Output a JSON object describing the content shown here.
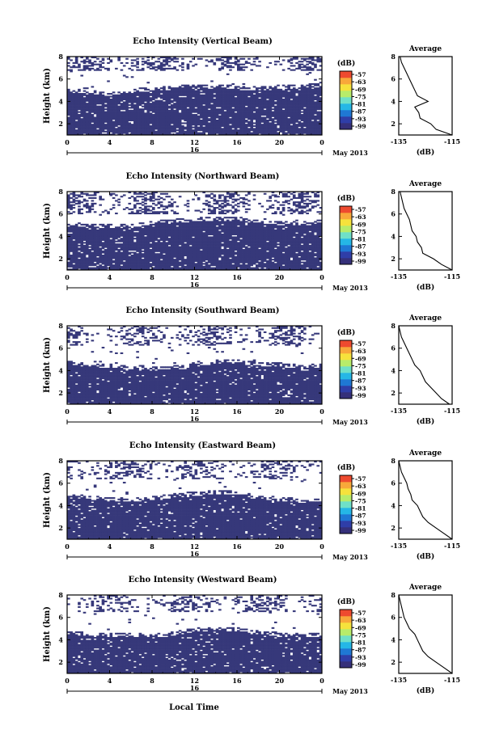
{
  "figure": {
    "common": {
      "ylabel": "Height (km)",
      "y_ticks": [
        "2",
        "4",
        "6",
        "8"
      ],
      "x_ticks": [
        "0",
        "4",
        "8",
        "12",
        "16",
        "20",
        "0"
      ],
      "day_label": "16",
      "month_label": "May 2013",
      "xlabel": "Local Time",
      "colorbar_unit": "(dB)",
      "colorbar_ticks": [
        "-57",
        "-63",
        "-69",
        "-75",
        "-81",
        "-87",
        "-93",
        "-99"
      ],
      "avg_title": "Average",
      "avg_xlabel": "(dB)",
      "avg_x_ticks": [
        "-135",
        "-115"
      ],
      "avg_y_ticks": [
        "2",
        "4",
        "6",
        "8"
      ]
    },
    "colors": {
      "echo": "#36387a",
      "colorbar": [
        "#35307a",
        "#2f3ea8",
        "#1f78d4",
        "#25b7e6",
        "#6fe0c8",
        "#b8ec6a",
        "#f6e23c",
        "#f8a83a",
        "#ee4a2f"
      ]
    }
  },
  "chart_data": [
    {
      "type": "heatmap",
      "title": "Echo Intensity (Vertical Beam)",
      "xlim": [
        0,
        24
      ],
      "ylim": [
        1,
        8
      ],
      "solid_layer": [
        [
          0,
          4.8
        ],
        [
          2,
          4.65
        ],
        [
          4,
          4.5
        ],
        [
          6,
          4.8
        ],
        [
          8,
          4.95
        ],
        [
          10,
          5.05
        ],
        [
          12,
          5.15
        ],
        [
          14,
          5.2
        ],
        [
          16,
          5.05
        ],
        [
          18,
          5.0
        ],
        [
          20,
          5.1
        ],
        [
          22,
          5.2
        ],
        [
          24,
          5.25
        ]
      ],
      "upper_echo": {
        "from": 6.8,
        "to": 8.0,
        "density": 0.55
      },
      "average_profile": {
        "x_range": [
          -135,
          -115
        ],
        "height": [
          1,
          1.5,
          2,
          2.5,
          3,
          3.5,
          4,
          4.5,
          5,
          5.5,
          6,
          6.5,
          7,
          7.5,
          8
        ],
        "db": [
          -115,
          -121,
          -123,
          -127,
          -127.5,
          -129,
          -124,
          -128,
          -129,
          -130,
          -131,
          -132,
          -133,
          -134,
          -134.5
        ]
      }
    },
    {
      "type": "heatmap",
      "title": "Echo Intensity (Northward Beam)",
      "xlim": [
        0,
        24
      ],
      "ylim": [
        1,
        8
      ],
      "solid_layer": [
        [
          0,
          4.9
        ],
        [
          2,
          4.8
        ],
        [
          4,
          4.75
        ],
        [
          6,
          4.85
        ],
        [
          8,
          5.0
        ],
        [
          10,
          5.2
        ],
        [
          12,
          5.35
        ],
        [
          14,
          5.4
        ],
        [
          16,
          5.35
        ],
        [
          18,
          5.1
        ],
        [
          20,
          5.05
        ],
        [
          22,
          5.1
        ],
        [
          24,
          5.2
        ]
      ],
      "upper_echo": {
        "from": 6.0,
        "to": 8.0,
        "density": 0.5
      },
      "average_profile": {
        "x_range": [
          -135,
          -115
        ],
        "height": [
          1,
          1.5,
          2,
          2.5,
          3,
          3.5,
          4,
          4.5,
          5,
          5.5,
          6,
          6.5,
          7,
          7.5,
          8
        ],
        "db": [
          -115,
          -119,
          -122,
          -126,
          -126.5,
          -128,
          -128.5,
          -130,
          -130.5,
          -131,
          -132,
          -133,
          -133.5,
          -134,
          -134.5
        ]
      }
    },
    {
      "type": "heatmap",
      "title": "Echo Intensity (Southward Beam)",
      "xlim": [
        0,
        24
      ],
      "ylim": [
        1,
        8
      ],
      "solid_layer": [
        [
          0,
          4.5
        ],
        [
          2,
          4.35
        ],
        [
          4,
          4.25
        ],
        [
          6,
          4.15
        ],
        [
          8,
          4.05
        ],
        [
          10,
          4.1
        ],
        [
          12,
          4.25
        ],
        [
          14,
          4.6
        ],
        [
          16,
          4.6
        ],
        [
          18,
          4.45
        ],
        [
          20,
          4.35
        ],
        [
          22,
          4.2
        ],
        [
          24,
          4.25
        ]
      ],
      "upper_echo": {
        "from": 6.2,
        "to": 8.0,
        "density": 0.45
      },
      "average_profile": {
        "x_range": [
          -135,
          -115
        ],
        "height": [
          1,
          1.5,
          2,
          2.5,
          3,
          3.5,
          4,
          4.5,
          5,
          5.5,
          6,
          6.5,
          7,
          7.5,
          8
        ],
        "db": [
          -116,
          -119,
          -121,
          -123,
          -125,
          -126,
          -127,
          -129,
          -130,
          -131,
          -132,
          -133,
          -134,
          -134.5,
          -135
        ]
      }
    },
    {
      "type": "heatmap",
      "title": "Echo Intensity (Eastward Beam)",
      "xlim": [
        0,
        24
      ],
      "ylim": [
        1,
        8
      ],
      "solid_layer": [
        [
          0,
          4.7
        ],
        [
          2,
          4.55
        ],
        [
          4,
          4.4
        ],
        [
          6,
          4.3
        ],
        [
          8,
          4.45
        ],
        [
          10,
          4.7
        ],
        [
          12,
          4.9
        ],
        [
          14,
          5.0
        ],
        [
          16,
          4.95
        ],
        [
          18,
          4.6
        ],
        [
          20,
          4.4
        ],
        [
          22,
          4.3
        ],
        [
          24,
          4.35
        ]
      ],
      "upper_echo": {
        "from": 6.4,
        "to": 8.0,
        "density": 0.45
      },
      "average_profile": {
        "x_range": [
          -135,
          -115
        ],
        "height": [
          1,
          1.5,
          2,
          2.5,
          3,
          3.5,
          4,
          4.5,
          5,
          5.5,
          6,
          6.5,
          7,
          7.5,
          8
        ],
        "db": [
          -115,
          -118,
          -121,
          -124,
          -126,
          -127,
          -128,
          -130,
          -130.5,
          -131.5,
          -132,
          -133,
          -134,
          -134.5,
          -135
        ]
      }
    },
    {
      "type": "heatmap",
      "title": "Echo Intensity (Westward Beam)",
      "xlim": [
        0,
        24
      ],
      "ylim": [
        1,
        8
      ],
      "solid_layer": [
        [
          0,
          4.45
        ],
        [
          2,
          4.35
        ],
        [
          4,
          4.3
        ],
        [
          6,
          4.25
        ],
        [
          8,
          4.2
        ],
        [
          10,
          4.35
        ],
        [
          12,
          4.75
        ],
        [
          14,
          4.85
        ],
        [
          16,
          4.75
        ],
        [
          18,
          4.45
        ],
        [
          20,
          4.35
        ],
        [
          22,
          4.2
        ],
        [
          24,
          4.25
        ]
      ],
      "upper_echo": {
        "from": 6.5,
        "to": 8.0,
        "density": 0.4
      },
      "average_profile": {
        "x_range": [
          -135,
          -115
        ],
        "height": [
          1,
          1.5,
          2,
          2.5,
          3,
          3.5,
          4,
          4.5,
          5,
          5.5,
          6,
          6.5,
          7,
          7.5,
          8
        ],
        "db": [
          -115,
          -118,
          -121,
          -124,
          -126,
          -127,
          -128,
          -129,
          -131,
          -132,
          -133,
          -133.5,
          -134,
          -134.5,
          -135
        ]
      }
    }
  ]
}
